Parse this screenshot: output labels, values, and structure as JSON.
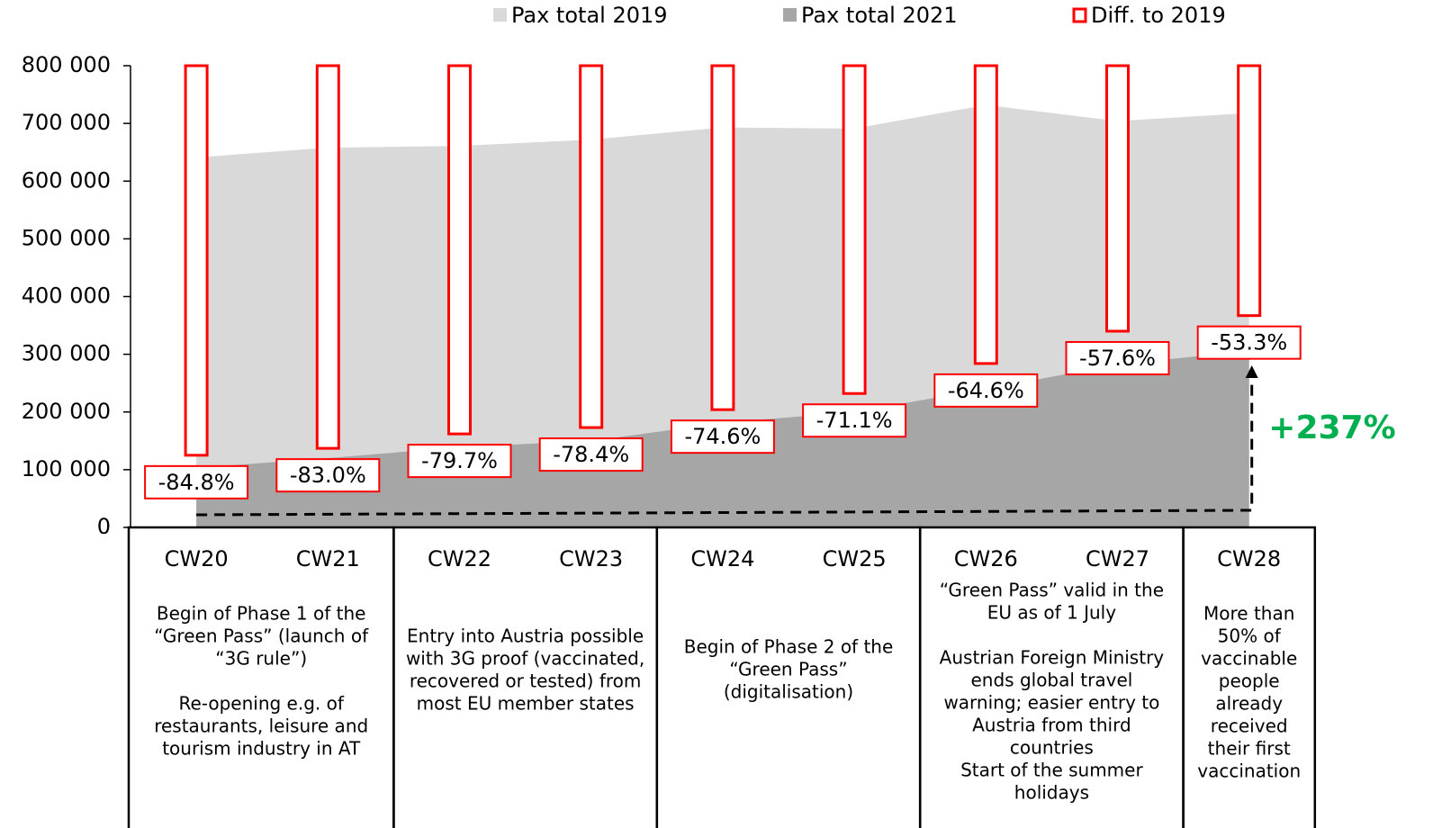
{
  "chart_data": {
    "type": "area",
    "categories": [
      "CW20",
      "CW21",
      "CW22",
      "CW23",
      "CW24",
      "CW25",
      "CW26",
      "CW27",
      "CW28"
    ],
    "series": [
      {
        "name": "Pax total 2019",
        "color": "#d9d9d9",
        "values": [
          641000,
          658000,
          661000,
          672000,
          693000,
          691000,
          732000,
          704000,
          718000
        ]
      },
      {
        "name": "Pax total 2021",
        "color": "#a6a6a6",
        "values": [
          103000,
          120000,
          139000,
          150000,
          181000,
          200000,
          240000,
          282000,
          306000
        ]
      },
      {
        "name": "Diff. to 2019",
        "color": "#ff0000",
        "type": "floating-bar",
        "values": [
          -84.8,
          -83.0,
          -79.7,
          -78.4,
          -74.6,
          -71.1,
          -64.6,
          -57.6,
          -53.3
        ],
        "value_labels": [
          "-84.8%",
          "-83.0%",
          "-79.7%",
          "-78.4%",
          "-74.6%",
          "-71.1%",
          "-64.6%",
          "-57.6%",
          "-53.3%"
        ],
        "low": [
          125000,
          137000,
          162000,
          173000,
          204000,
          232000,
          284000,
          340000,
          367000
        ],
        "high": [
          800000,
          800000,
          800000,
          800000,
          800000,
          800000,
          800000,
          800000,
          800000
        ]
      }
    ],
    "ylim": [
      0,
      800000
    ],
    "yticks": [
      0,
      {
        "value": 100000,
        "label": "100 000"
      },
      {
        "value": 200000,
        "label": "200 000"
      },
      {
        "value": 300000,
        "label": "300 000"
      },
      {
        "value": 400000,
        "label": "400 000"
      },
      {
        "value": 500000,
        "label": "500 000"
      },
      {
        "value": 600000,
        "label": "600 000"
      },
      {
        "value": 700000,
        "label": "700 000"
      },
      {
        "value": 800000,
        "label": "800 000"
      }
    ],
    "legend": "top",
    "annotation": "+237%",
    "phases": [
      [
        [
          "Begin of Phase 1 of the",
          "“Green Pass” (launch of",
          "“3G rule”)"
        ],
        [
          "Re-opening e.g. of",
          "restaurants, leisure and",
          "tourism industry in AT"
        ]
      ],
      [
        [
          "Entry into Austria possible",
          "with 3G proof (vaccinated,",
          "recovered or tested) from",
          "most EU member states"
        ]
      ],
      [
        [
          "Begin of Phase 2 of the",
          "“Green Pass”",
          "(digitalisation)"
        ]
      ],
      [
        [
          "“Green Pass” valid in the",
          "EU as of 1 July"
        ],
        [
          "Austrian Foreign Ministry",
          "ends global travel",
          "warning; easier entry to",
          "Austria from third",
          "countries",
          "Start of the summer",
          "holidays"
        ]
      ],
      [
        [
          "More than",
          "50% of",
          "vaccinable",
          "people",
          "already",
          "received",
          "their first",
          "vaccination"
        ]
      ]
    ]
  }
}
